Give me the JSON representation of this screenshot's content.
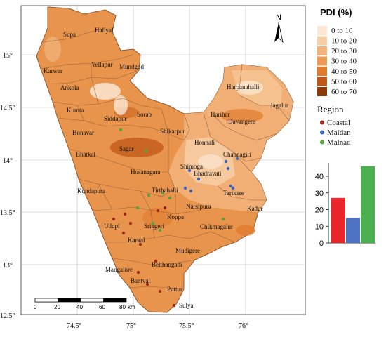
{
  "axes": {
    "x_ticks": [
      "74.5°",
      "75°",
      "75.5°",
      "76°"
    ],
    "y_ticks": [
      "15°",
      "14.5°",
      "14°",
      "13.5°",
      "13°",
      "12.5°"
    ]
  },
  "north_label": "N",
  "legend": {
    "title": "PDI (%)",
    "classes": [
      {
        "label": "0 to 10",
        "color": "#fbe7d3"
      },
      {
        "label": "10 to 20",
        "color": "#f7cfa6"
      },
      {
        "label": "20 to 30",
        "color": "#f2b47c"
      },
      {
        "label": "30 to 40",
        "color": "#ec9a55"
      },
      {
        "label": "40 to 50",
        "color": "#e07b2e"
      },
      {
        "label": "50 to 60",
        "color": "#bf5716"
      },
      {
        "label": "60 to 70",
        "color": "#8c3a08"
      }
    ]
  },
  "region_legend": {
    "title": "Region",
    "items": [
      {
        "label": "Coastal",
        "color": "#a12a1a"
      },
      {
        "label": "Maidan",
        "color": "#3e66b8"
      },
      {
        "label": "Malnad",
        "color": "#5aa23c"
      }
    ]
  },
  "chart_data": {
    "type": "bar",
    "categories": [
      "Coastal",
      "Maidan",
      "Malnad"
    ],
    "values": [
      27,
      15,
      46
    ],
    "colors": [
      "#e8262b",
      "#4f73c4",
      "#4caf50"
    ],
    "y_ticks": [
      "0",
      "10",
      "20",
      "30",
      "40"
    ],
    "ylim": [
      0,
      48
    ]
  },
  "scale_bar": {
    "labels": [
      "0",
      "20",
      "40",
      "60",
      "80"
    ],
    "unit": "km"
  },
  "places": [
    "Supa",
    "Haliyal",
    "Karwar",
    "Yellapur",
    "Mundgod",
    "Ankola",
    "Kumta",
    "Siddapur",
    "Sorab",
    "Honavar",
    "Shikarpur",
    "Bhatkal",
    "Sagar",
    "Hosanagara",
    "Kundapura",
    "Tirthahalli",
    "Narsipura",
    "Harpanahalli",
    "Jagalur",
    "Harihar",
    "Davangere",
    "Honnali",
    "Channagiri",
    "Shimoga",
    "Bhadravati",
    "Tarikere",
    "Kadur",
    "Koppa",
    "Sringeri",
    "Udupi",
    "Karkal",
    "Chikmagalur",
    "Mudigere",
    "Belthangadi",
    "Mangalore",
    "Bantval",
    "Puttur",
    "Sulya"
  ]
}
